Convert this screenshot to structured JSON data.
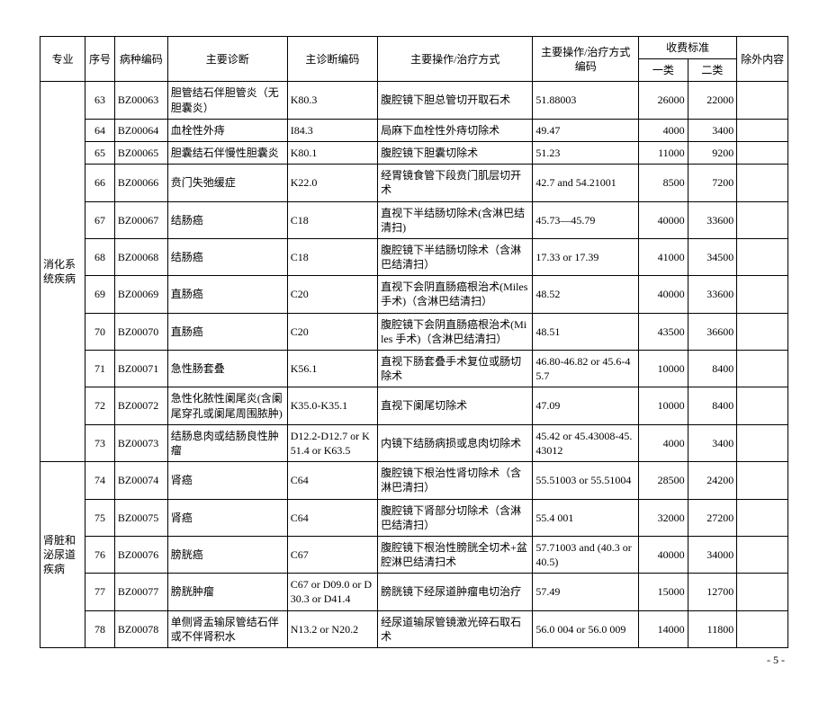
{
  "header": {
    "specialty": "专业",
    "seq": "序号",
    "code": "病种编码",
    "diagnosis": "主要诊断",
    "diag_code": "主诊断编码",
    "operation": "主要操作/治疗方式",
    "op_code": "主要操作/治疗方式编码",
    "fee_group": "收费标准",
    "fee1": "一类",
    "fee2": "二类",
    "exclusion": "除外内容"
  },
  "groups": [
    {
      "specialty": "消化系统疾病",
      "rows": [
        {
          "seq": "63",
          "code": "BZ00063",
          "diag": "胆管结石伴胆管炎（无胆囊炎）",
          "diag_code": "K80.3",
          "op": "腹腔镜下胆总管切开取石术",
          "op_code": "51.88003",
          "fee1": "26000",
          "fee2": "22000",
          "excl": ""
        },
        {
          "seq": "64",
          "code": "BZ00064",
          "diag": "血栓性外痔",
          "diag_code": "I84.3",
          "op": "局麻下血栓性外痔切除术",
          "op_code": "49.47",
          "fee1": "4000",
          "fee2": "3400",
          "excl": ""
        },
        {
          "seq": "65",
          "code": "BZ00065",
          "diag": "胆囊结石伴慢性胆囊炎",
          "diag_code": "K80.1",
          "op": "腹腔镜下胆囊切除术",
          "op_code": "51.23",
          "fee1": "11000",
          "fee2": "9200",
          "excl": ""
        },
        {
          "seq": "66",
          "code": "BZ00066",
          "diag": "贲门失弛缓症",
          "diag_code": "K22.0",
          "op": "经胃镜食管下段贲门肌层切开术",
          "op_code": "42.7 and 54.21001",
          "fee1": "8500",
          "fee2": "7200",
          "excl": ""
        },
        {
          "seq": "67",
          "code": "BZ00067",
          "diag": "结肠癌",
          "diag_code": "C18",
          "op": "直视下半结肠切除术(含淋巴结清扫)",
          "op_code": "45.73—45.79",
          "fee1": "40000",
          "fee2": "33600",
          "excl": ""
        },
        {
          "seq": "68",
          "code": "BZ00068",
          "diag": "结肠癌",
          "diag_code": "C18",
          "op": "腹腔镜下半结肠切除术（含淋巴结清扫）",
          "op_code": "17.33 or 17.39",
          "fee1": "41000",
          "fee2": "34500",
          "excl": ""
        },
        {
          "seq": "69",
          "code": "BZ00069",
          "diag": "直肠癌",
          "diag_code": "C20",
          "op": "直视下会阴直肠癌根治术(Miles 手术)（含淋巴结清扫）",
          "op_code": "48.52",
          "fee1": "40000",
          "fee2": "33600",
          "excl": ""
        },
        {
          "seq": "70",
          "code": "BZ00070",
          "diag": "直肠癌",
          "diag_code": "C20",
          "op": "腹腔镜下会阴直肠癌根治术(Miles 手术)（含淋巴结清扫）",
          "op_code": "48.51",
          "fee1": "43500",
          "fee2": "36600",
          "excl": ""
        },
        {
          "seq": "71",
          "code": "BZ00071",
          "diag": "急性肠套叠",
          "diag_code": "K56.1",
          "op": "直视下肠套叠手术复位或肠切除术",
          "op_code": "46.80-46.82 or 45.6-45.7",
          "fee1": "10000",
          "fee2": "8400",
          "excl": ""
        },
        {
          "seq": "72",
          "code": "BZ00072",
          "diag": "急性化脓性阑尾炎(含阑尾穿孔或阑尾周围脓肿)",
          "diag_code": "K35.0-K35.1",
          "op": "直视下阑尾切除术",
          "op_code": "47.09",
          "fee1": "10000",
          "fee2": "8400",
          "excl": ""
        },
        {
          "seq": "73",
          "code": "BZ00073",
          "diag": "结肠息肉或结肠良性肿瘤",
          "diag_code": "D12.2-D12.7 or K51.4 or K63.5",
          "op": "内镜下结肠病损或息肉切除术",
          "op_code": "45.42 or 45.43008-45.43012",
          "fee1": "4000",
          "fee2": "3400",
          "excl": ""
        }
      ]
    },
    {
      "specialty": "肾脏和泌尿道疾病",
      "rows": [
        {
          "seq": "74",
          "code": "BZ00074",
          "diag": "肾癌",
          "diag_code": "C64",
          "op": "腹腔镜下根治性肾切除术（含淋巴清扫）",
          "op_code": "55.51003 or 55.51004",
          "fee1": "28500",
          "fee2": "24200",
          "excl": ""
        },
        {
          "seq": "75",
          "code": "BZ00075",
          "diag": "肾癌",
          "diag_code": "C64",
          "op": "腹腔镜下肾部分切除术（含淋巴结清扫）",
          "op_code": "55.4 001",
          "fee1": "32000",
          "fee2": "27200",
          "excl": ""
        },
        {
          "seq": "76",
          "code": "BZ00076",
          "diag": "膀胱癌",
          "diag_code": "C67",
          "op": "腹腔镜下根治性膀胱全切术+盆腔淋巴结清扫术",
          "op_code": "57.71003 and (40.3 or 40.5)",
          "fee1": "40000",
          "fee2": "34000",
          "excl": ""
        },
        {
          "seq": "77",
          "code": "BZ00077",
          "diag": "膀胱肿瘤",
          "diag_code": "C67 or D09.0 or D30.3 or D41.4",
          "op": "膀胱镜下经尿道肿瘤电切治疗",
          "op_code": "57.49",
          "fee1": "15000",
          "fee2": "12700",
          "excl": ""
        },
        {
          "seq": "78",
          "code": "BZ00078",
          "diag": "单侧肾盂输尿管结石伴或不伴肾积水",
          "diag_code": "N13.2 or N20.2",
          "op": "经尿道输尿管镜激光碎石取石术",
          "op_code": "56.0 004 or 56.0 009",
          "fee1": "14000",
          "fee2": "11800",
          "excl": ""
        }
      ]
    }
  ],
  "page_number": "- 5 -"
}
